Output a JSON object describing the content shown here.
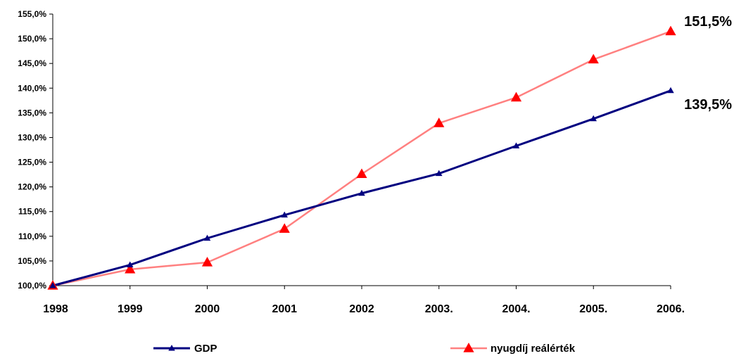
{
  "chart_data": {
    "type": "line",
    "categories": [
      "1998",
      "1999",
      "2000",
      "2001",
      "2002",
      "2003.",
      "2004.",
      "2005.",
      "2006."
    ],
    "series": [
      {
        "name": "GDP",
        "values": [
          100.0,
          104.2,
          109.6,
          114.3,
          118.7,
          122.7,
          128.3,
          133.8,
          139.5
        ],
        "color": "#000080",
        "marker": "triangle"
      },
      {
        "name": "nyugdíj reálérték",
        "values": [
          100.0,
          103.3,
          104.7,
          111.5,
          122.6,
          132.9,
          138.1,
          145.8,
          151.5
        ],
        "color": "#ff8080",
        "marker_color": "#ff0000",
        "marker": "triangle"
      }
    ],
    "ylim": [
      100,
      155
    ],
    "yticks": [
      "100,0%",
      "105,0%",
      "110,0%",
      "115,0%",
      "120,0%",
      "125,0%",
      "130,0%",
      "135,0%",
      "140,0%",
      "145,0%",
      "150,0%",
      "155,0%"
    ],
    "ytick_values": [
      100,
      105,
      110,
      115,
      120,
      125,
      130,
      135,
      140,
      145,
      150,
      155
    ],
    "annotations": [
      {
        "text": "151,5%",
        "series": "nyugdíj reálérték",
        "category": "2006."
      },
      {
        "text": "139,5%",
        "series": "GDP",
        "category": "2006."
      }
    ],
    "grid": false,
    "legend_position": "bottom"
  }
}
